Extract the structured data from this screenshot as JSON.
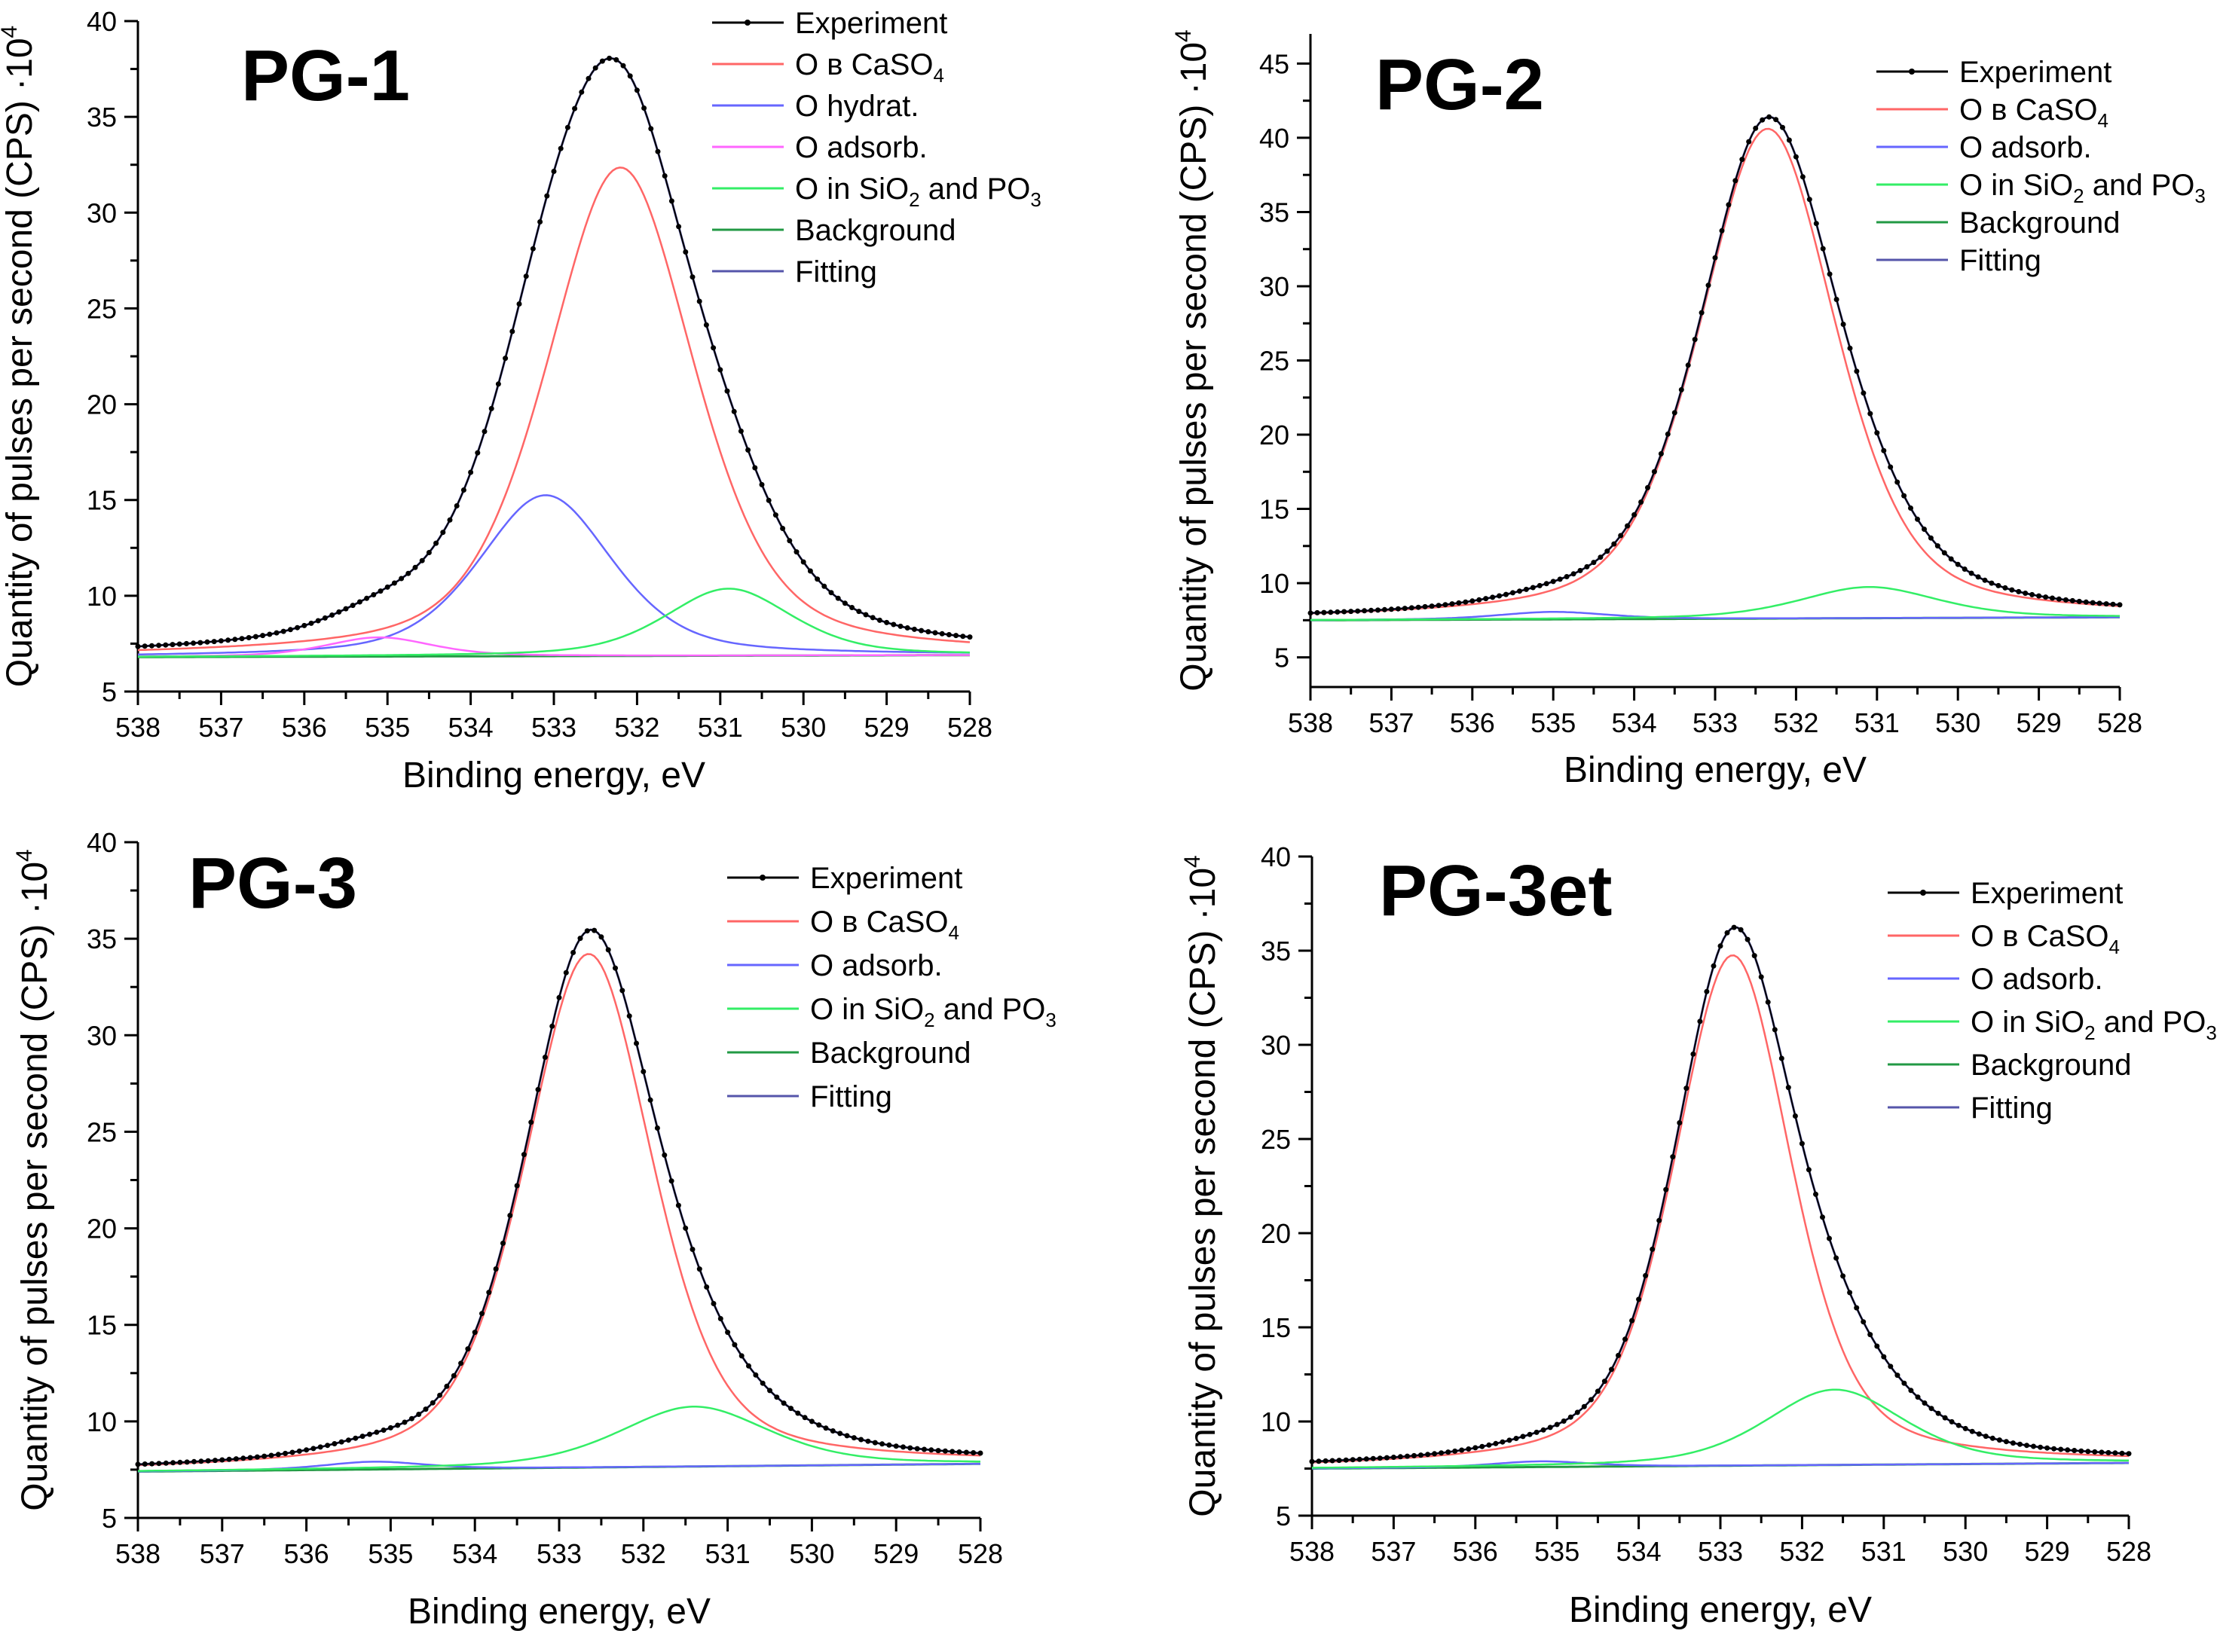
{
  "chart_data": [
    {
      "type": "line",
      "title": "PG-1",
      "xlabel": "Binding energy, eV",
      "ylabel": "Quantity of pulses per second  (CPS) ·10",
      "ylabel_exp": "4",
      "xlim": [
        538,
        528
      ],
      "ylim": [
        5,
        40
      ],
      "xticks": [
        "538",
        "537",
        "536",
        "535",
        "534",
        "533",
        "532",
        "531",
        "530",
        "529",
        "528"
      ],
      "yticks": [
        "5",
        "10",
        "15",
        "20",
        "25",
        "30",
        "35",
        "40"
      ],
      "background": [
        6.8,
        6.9
      ],
      "components": [
        {
          "key": "caso4",
          "center": 532.2,
          "height": 25.5,
          "width": 1.05
        },
        {
          "key": "hydrat",
          "center": 533.1,
          "height": 8.4,
          "width": 0.95
        },
        {
          "key": "adsorb",
          "center": 535.1,
          "height": 1.0,
          "width": 0.75
        },
        {
          "key": "sio2",
          "center": 530.9,
          "height": 3.5,
          "width": 0.9
        }
      ],
      "legend": [
        {
          "key": "experiment",
          "name": "Experiment",
          "color": "#000000"
        },
        {
          "key": "caso4",
          "name": "O в CaSO",
          "sub": "4",
          "color": "#ff6666"
        },
        {
          "key": "hydrat",
          "name": "O hydrat.",
          "color": "#6666ff"
        },
        {
          "key": "adsorb",
          "name": "O adsorb.",
          "color": "#ff66ff"
        },
        {
          "key": "sio2",
          "name": "O in SiO",
          "sub": "2",
          "suffix": " and PO",
          "sub2": "3",
          "color": "#33ee66"
        },
        {
          "key": "background",
          "name": "Background",
          "color": "#229944"
        },
        {
          "key": "fitting",
          "name": "Fitting",
          "color": "#5555aa"
        }
      ]
    },
    {
      "type": "line",
      "title": "PG-2",
      "xlabel": "Binding energy, eV",
      "ylabel": "Quantity of pulses per second  (CPS) ·10",
      "ylabel_exp": "4",
      "xlim": [
        538,
        528
      ],
      "ylim": [
        3,
        47
      ],
      "xticks": [
        "538",
        "537",
        "536",
        "535",
        "534",
        "533",
        "532",
        "531",
        "530",
        "529",
        "528"
      ],
      "yticks": [
        "5",
        "10",
        "15",
        "20",
        "25",
        "30",
        "35",
        "40",
        "45"
      ],
      "background": [
        7.5,
        7.7
      ],
      "components": [
        {
          "key": "caso4",
          "center": 532.35,
          "height": 33.0,
          "width": 1.0
        },
        {
          "key": "adsorb",
          "center": 535.0,
          "height": 0.5,
          "width": 0.8
        },
        {
          "key": "sio2",
          "center": 531.1,
          "height": 2.1,
          "width": 1.0
        }
      ],
      "legend": [
        {
          "key": "experiment",
          "name": "Experiment",
          "color": "#000000"
        },
        {
          "key": "caso4",
          "name": "O в CaSO",
          "sub": "4",
          "color": "#ff6666"
        },
        {
          "key": "adsorb",
          "name": "O adsorb.",
          "color": "#6666ff"
        },
        {
          "key": "sio2",
          "name": "O in SiO",
          "sub": "2",
          "suffix": " and PO",
          "sub2": "3",
          "color": "#33ee66"
        },
        {
          "key": "background",
          "name": "Background",
          "color": "#229944"
        },
        {
          "key": "fitting",
          "name": "Fitting",
          "color": "#5555aa"
        }
      ]
    },
    {
      "type": "line",
      "title": "PG-3",
      "xlabel": "Binding energy, eV",
      "ylabel": "Quantity of pulses per second  (CPS) ·10",
      "ylabel_exp": "4",
      "xlim": [
        538,
        528
      ],
      "ylim": [
        5,
        40
      ],
      "xticks": [
        "538",
        "537",
        "536",
        "535",
        "534",
        "533",
        "532",
        "531",
        "530",
        "529",
        "528"
      ],
      "yticks": [
        "5",
        "10",
        "15",
        "20",
        "25",
        "30",
        "35",
        "40"
      ],
      "background": [
        7.4,
        7.8
      ],
      "components": [
        {
          "key": "caso4",
          "center": 532.65,
          "height": 26.6,
          "width": 0.9
        },
        {
          "key": "adsorb",
          "center": 535.2,
          "height": 0.4,
          "width": 0.7
        },
        {
          "key": "sio2",
          "center": 531.4,
          "height": 3.1,
          "width": 1.05
        }
      ],
      "legend": [
        {
          "key": "experiment",
          "name": "Experiment",
          "color": "#000000"
        },
        {
          "key": "caso4",
          "name": "O в CaSO",
          "sub": "4",
          "color": "#ff6666"
        },
        {
          "key": "adsorb",
          "name": "O adsorb.",
          "color": "#6666ff"
        },
        {
          "key": "sio2",
          "name": "O in SiO",
          "sub": "2",
          "suffix": " and PO",
          "sub2": "3",
          "color": "#33ee66"
        },
        {
          "key": "background",
          "name": "Background",
          "color": "#229944"
        },
        {
          "key": "fitting",
          "name": "Fitting",
          "color": "#5555aa"
        }
      ]
    },
    {
      "type": "line",
      "title": "PG-3et",
      "xlabel": "Binding energy, eV",
      "ylabel": "Quantity of pulses per second  (CPS) ·10",
      "ylabel_exp": "4",
      "xlim": [
        538,
        528
      ],
      "ylim": [
        5,
        40
      ],
      "xticks": [
        "538",
        "537",
        "536",
        "535",
        "534",
        "533",
        "532",
        "531",
        "530",
        "529",
        "528"
      ],
      "yticks": [
        "5",
        "10",
        "15",
        "20",
        "25",
        "30",
        "35",
        "40"
      ],
      "background": [
        7.5,
        7.8
      ],
      "components": [
        {
          "key": "caso4",
          "center": 532.85,
          "height": 27.1,
          "width": 0.85
        },
        {
          "key": "adsorb",
          "center": 535.2,
          "height": 0.3,
          "width": 0.7
        },
        {
          "key": "sio2",
          "center": 531.6,
          "height": 4.0,
          "width": 1.0
        }
      ],
      "legend": [
        {
          "key": "experiment",
          "name": "Experiment",
          "color": "#000000"
        },
        {
          "key": "caso4",
          "name": "O в CaSO",
          "sub": "4",
          "color": "#ff6666"
        },
        {
          "key": "adsorb",
          "name": "O adsorb.",
          "color": "#6666ff"
        },
        {
          "key": "sio2",
          "name": "O in SiO",
          "sub": "2",
          "suffix": " and PO",
          "sub2": "3",
          "color": "#33ee66"
        },
        {
          "key": "background",
          "name": "Background",
          "color": "#229944"
        },
        {
          "key": "fitting",
          "name": "Fitting",
          "color": "#5555aa"
        }
      ]
    }
  ]
}
